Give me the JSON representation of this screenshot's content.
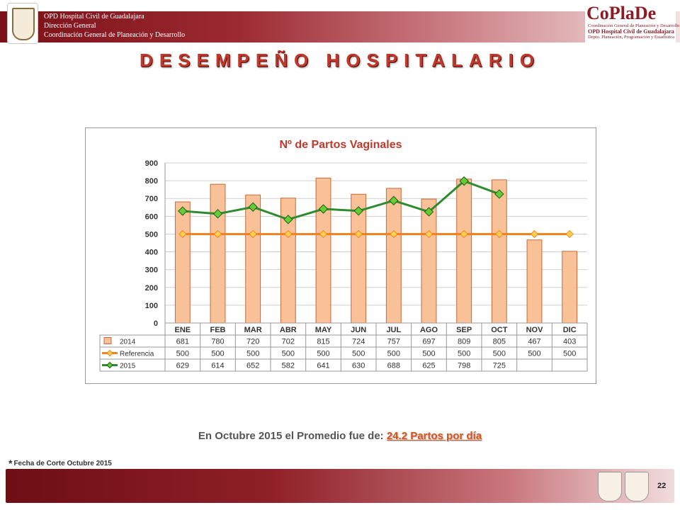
{
  "header": {
    "lines": [
      "OPD Hospital Civil de Guadalajara",
      "Dirección General",
      "Coordinación General de Planeación y Desarrollo"
    ]
  },
  "logo": {
    "title": "CoPlaDe",
    "lines": [
      "Coordinación General de Planeación y Desarrollo",
      "OPD Hospital Civil de Guadalajara",
      "Depto. Planeación, Programación y Estadística"
    ]
  },
  "page_title": "DESEMPEÑO HOSPITALARIO",
  "summary": {
    "prefix": "En Octubre 2015 el Promedio fue de:",
    "highlight": "24.2 Partos por día"
  },
  "footnote": {
    "star": "*",
    "text": "Fecha de Corte Octubre 2015"
  },
  "page_number": "22",
  "colors": {
    "bar_2014": "#f9c198",
    "bar_border": "#c8693a",
    "referencia": "#f58220",
    "line_2015": "#2e8b2e",
    "marker_2015": "#66cc33",
    "title": "#c0392b"
  },
  "chart_data": {
    "type": "bar",
    "title": "Nº de Partos Vaginales",
    "categories": [
      "ENE",
      "FEB",
      "MAR",
      "ABR",
      "MAY",
      "JUN",
      "JUL",
      "AGO",
      "SEP",
      "OCT",
      "NOV",
      "DIC"
    ],
    "ylim": [
      0,
      900
    ],
    "yticks": [
      0,
      100,
      200,
      300,
      400,
      500,
      600,
      700,
      800,
      900
    ],
    "grid": true,
    "legend": "data-table",
    "series": [
      {
        "name": "2014",
        "kind": "bar",
        "values": [
          681,
          780,
          720,
          702,
          815,
          724,
          757,
          697,
          809,
          805,
          467,
          403
        ]
      },
      {
        "name": "Referencia",
        "kind": "line",
        "values": [
          500,
          500,
          500,
          500,
          500,
          500,
          500,
          500,
          500,
          500,
          500,
          500
        ]
      },
      {
        "name": "2015",
        "kind": "line",
        "values": [
          629,
          614,
          652,
          582,
          641,
          630,
          688,
          625,
          798,
          725,
          null,
          null
        ]
      }
    ]
  }
}
